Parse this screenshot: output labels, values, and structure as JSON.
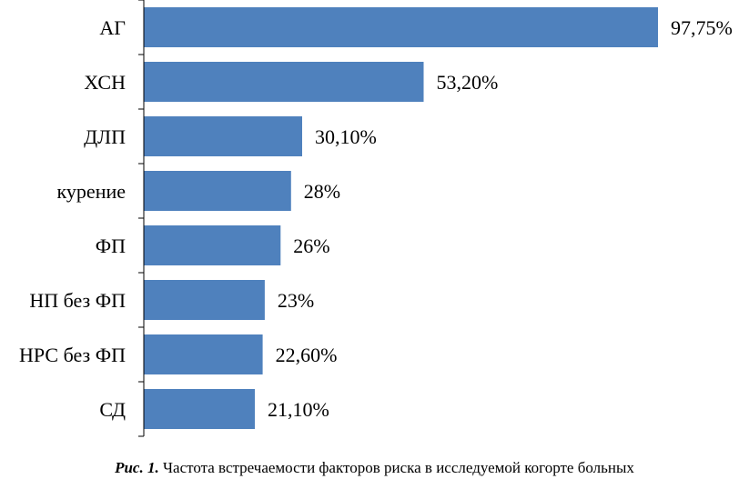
{
  "chart_data": {
    "type": "bar",
    "orientation": "horizontal",
    "categories": [
      "АГ",
      "ХСН",
      "ДЛП",
      "курение",
      "ФП",
      "НП без ФП",
      "НРС без ФП",
      "СД"
    ],
    "values": [
      97.75,
      53.2,
      30.1,
      28,
      26,
      23,
      22.6,
      21.1
    ],
    "data_labels": [
      "97,75%",
      "53,20%",
      "30,10%",
      "28%",
      "26%",
      "23%",
      "22,60%",
      "21,10%"
    ],
    "title": "",
    "xlabel": "",
    "ylabel": "",
    "xlim": [
      0,
      100
    ],
    "grid": false,
    "legend": "none",
    "bar_color": "#4F81BD"
  },
  "caption": {
    "label": "Рис. 1.",
    "text": "Частота встречаемости факторов риска в исследуемой когорте больных"
  }
}
